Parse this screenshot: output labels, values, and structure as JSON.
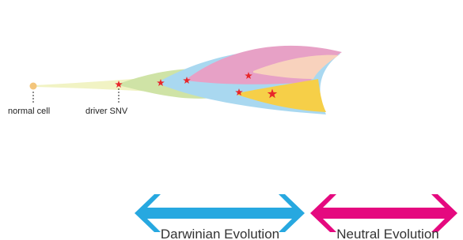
{
  "labels": {
    "normal_cell": "normal cell",
    "driver_snv": "driver SNV"
  },
  "arrows": {
    "darwinian": "Darwinian Evolution",
    "neutral": "Neutral Evolution"
  }
}
